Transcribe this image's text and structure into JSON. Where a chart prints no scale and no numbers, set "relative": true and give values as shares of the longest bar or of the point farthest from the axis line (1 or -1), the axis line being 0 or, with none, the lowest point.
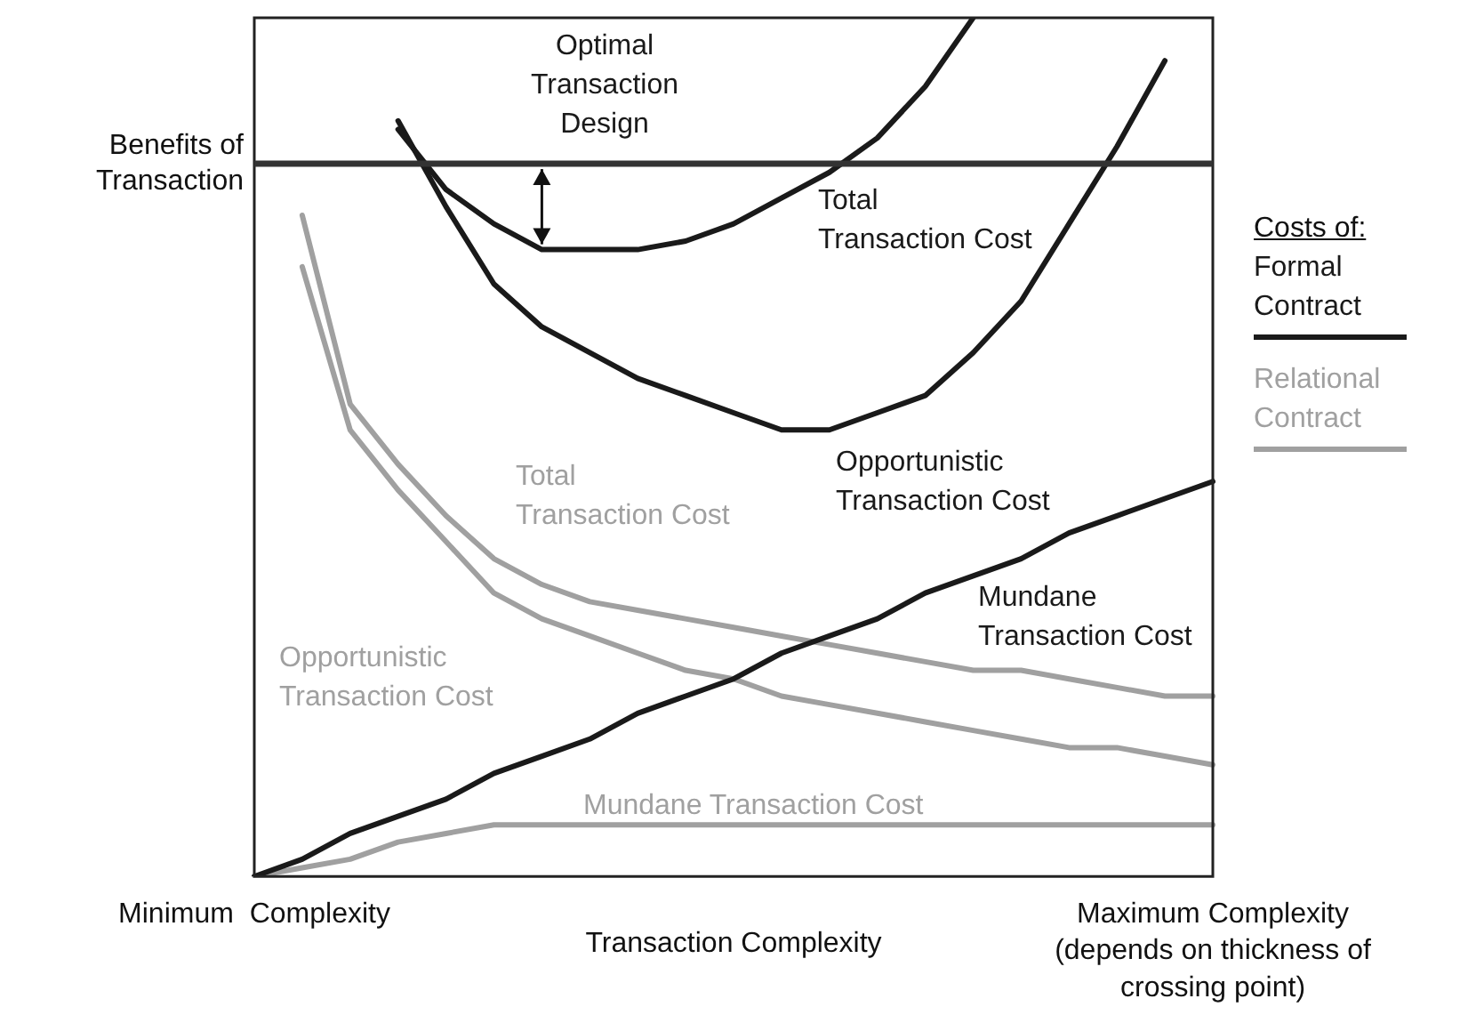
{
  "chart_data": {
    "type": "line",
    "relative": true,
    "xlabel": "Transaction Complexity",
    "legend_title": "Costs of:",
    "legend": "right",
    "grid": false,
    "marker": "none",
    "line_style": "solid",
    "categories": [
      "Minimum  Complexity",
      null,
      null,
      null,
      null,
      null,
      null,
      null,
      null,
      null,
      null,
      null,
      null,
      null,
      null,
      null,
      null,
      null,
      null,
      null,
      "Maximum Complexity (depends on thickness of crossing point)"
    ],
    "series": [
      {
        "name": "Formal Contract",
        "color": "#1a1a1a",
        "values": [
          null,
          null,
          null,
          0.87,
          0.8,
          0.76,
          0.73,
          0.73,
          0.73,
          0.74,
          0.76,
          0.79,
          0.82,
          0.86,
          0.92,
          1,
          null,
          null,
          null,
          null,
          null
        ]
      },
      {
        "color": "#1a1a1a",
        "values": [
          null,
          null,
          null,
          0.88,
          0.78,
          0.69,
          0.64,
          0.61,
          0.58,
          0.56,
          0.54,
          0.52,
          0.52,
          0.54,
          0.56,
          0.61,
          0.67,
          0.76,
          0.85,
          0.95,
          null
        ]
      },
      {
        "color": "#1a1a1a",
        "values": [
          0,
          0.02,
          0.05,
          0.07,
          0.09,
          0.12,
          0.14,
          0.16,
          0.19,
          0.21,
          0.23,
          0.26,
          0.28,
          0.3,
          0.33,
          0.35,
          0.37,
          0.4,
          0.42,
          0.44,
          0.46
        ]
      },
      {
        "name": "Relational Contract",
        "color": "#a0a0a0",
        "values": [
          null,
          0.77,
          0.55,
          0.48,
          0.42,
          0.37,
          0.34,
          0.32,
          0.31,
          0.3,
          0.29,
          0.28,
          0.27,
          0.26,
          0.25,
          0.24,
          0.24,
          0.23,
          0.22,
          0.21,
          0.21
        ]
      },
      {
        "color": "#a0a0a0",
        "values": [
          null,
          0.71,
          0.52,
          0.45,
          0.39,
          0.33,
          0.3,
          0.28,
          0.26,
          0.24,
          0.23,
          0.21,
          0.2,
          0.19,
          0.18,
          0.17,
          0.16,
          0.15,
          0.15,
          0.14,
          0.13
        ]
      },
      {
        "color": "#a0a0a0",
        "values": [
          0,
          0.01,
          0.02,
          0.04,
          0.05,
          0.06,
          0.06,
          0.06,
          0.06,
          0.06,
          0.06,
          0.06,
          0.06,
          0.06,
          0.06,
          0.06,
          0.06,
          0.06,
          0.06,
          0.06,
          0.06
        ]
      }
    ],
    "ref_lines": [
      {
        "axis": "y",
        "value": 0.83,
        "label": "Benefits of Transaction",
        "color": "#333333"
      }
    ],
    "annotations": [
      "Optimal\nTransaction\nDesign",
      "Total\nTransaction Cost",
      "Opportunistic\nTransaction Cost",
      "Mundane\nTransaction Cost",
      "Total\nTransaction Cost",
      "Opportunistic\nTransaction Cost",
      "Mundane Transaction Cost"
    ]
  }
}
